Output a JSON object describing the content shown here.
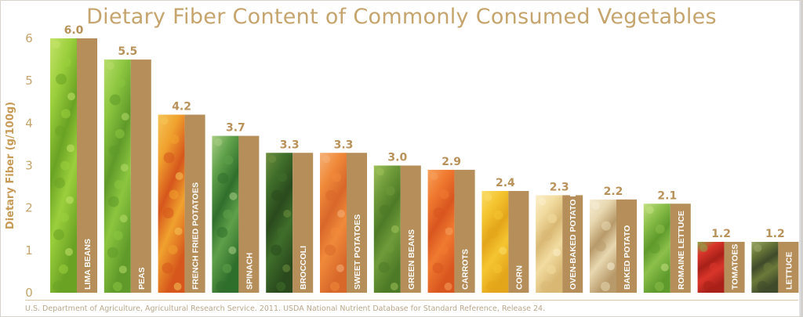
{
  "title": "Dietary Fiber Content of Commonly Consumed Vegetables",
  "source": "U.S. Department of Agriculture, Agricultural Research Service. 2011. USDA National Nutrient Database for Standard Reference, Release 24.",
  "colors": {
    "title": "#c5a46d",
    "bar": "#b58e5a",
    "label": "#b8925a",
    "axis_text": "#c5a46d"
  },
  "chart_data": {
    "type": "bar",
    "title": "Dietary Fiber Content of Commonly Consumed Vegetables",
    "ylabel": "Dietary Fiber (g/100g)",
    "xlabel": "",
    "ylim": [
      0,
      6
    ],
    "yticks": [
      "0",
      "1",
      "2",
      "3",
      "4",
      "5",
      "6"
    ],
    "grid": false,
    "categories": [
      "LIMA BEANS",
      "PEAS",
      "FRENCH FRIED POTATOES",
      "SPINACH",
      "BROCCOLI",
      "SWEET POTATOES",
      "GREEN BEANS",
      "CARROTS",
      "CORN",
      "OVEN-BAKED POTATO FRIES",
      "BAKED POTATO",
      "ROMAINE LETTUCE",
      "TOMATOES",
      "LETTUCE"
    ],
    "values": [
      6.0,
      5.5,
      4.2,
      3.7,
      3.3,
      3.3,
      3.0,
      2.9,
      2.4,
      2.3,
      2.2,
      2.1,
      1.2,
      1.2
    ],
    "value_labels": [
      "6.0",
      "5.5",
      "4.2",
      "3.7",
      "3.3",
      "3.3",
      "3.0",
      "2.9",
      "2.4",
      "2.3",
      "2.2",
      "2.1",
      "1.2",
      "1.2"
    ],
    "photo_colors": [
      [
        "#9bcf3c",
        "#6aa324",
        "#c4e36a"
      ],
      [
        "#8cc63f",
        "#5f9a2a",
        "#b7dd6a"
      ],
      [
        "#f0a22e",
        "#d6561c",
        "#f5c458"
      ],
      [
        "#5fa04a",
        "#2f6f2c",
        "#a9cf86"
      ],
      [
        "#3f6e2a",
        "#2a4a1d",
        "#6f8f3f"
      ],
      [
        "#f08a3a",
        "#d8672a",
        "#f5b27a"
      ],
      [
        "#6f9b3a",
        "#4d7a26",
        "#9ec15a"
      ],
      [
        "#f07a30",
        "#d9561f",
        "#f6a15c"
      ],
      [
        "#f5c531",
        "#e3a51a",
        "#f9dc6a"
      ],
      [
        "#f2dca0",
        "#d9b874",
        "#fbeecb"
      ],
      [
        "#e8d8b0",
        "#b89a6a",
        "#f5ecd4"
      ],
      [
        "#8cc04a",
        "#5e9a2c",
        "#c4e083"
      ],
      [
        "#d9352a",
        "#a82018",
        "#8aa84a"
      ],
      [
        "#6b7a3a",
        "#3f4a2a",
        "#9aa86a"
      ]
    ]
  }
}
